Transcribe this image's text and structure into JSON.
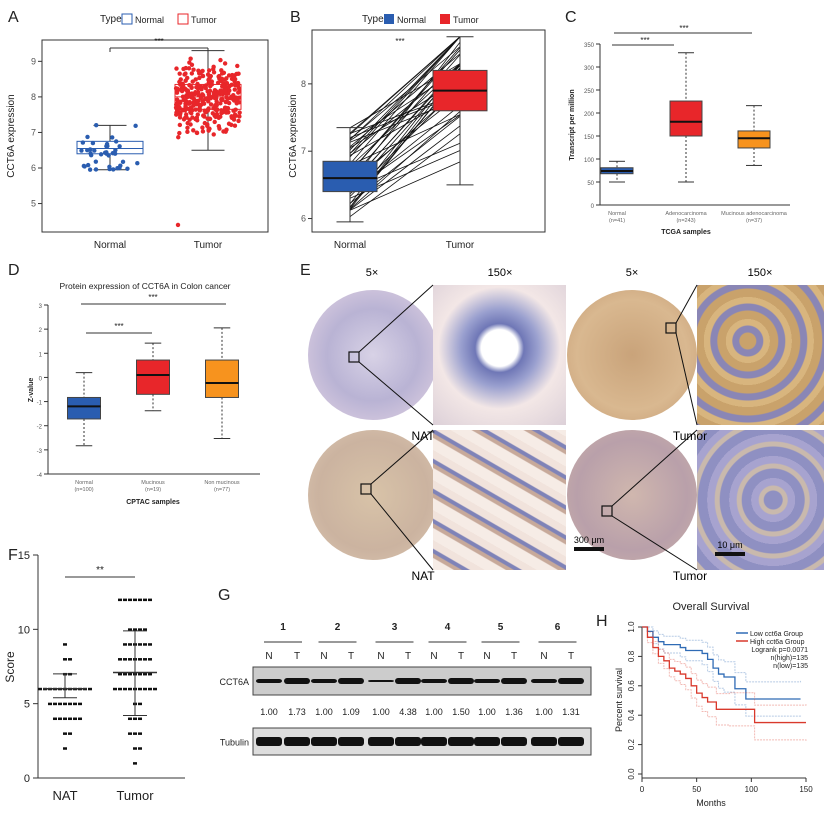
{
  "panel_letters": [
    "A",
    "B",
    "C",
    "D",
    "E",
    "F",
    "G",
    "H"
  ],
  "colors": {
    "normal_blue": "#2a5db0",
    "tumor_red": "#e8262a",
    "mucinous_orange": "#f7931e",
    "km_low": "#2f6bb5",
    "km_high": "#d9392c"
  },
  "chart_data": [
    {
      "panel": "A",
      "type": "box",
      "legend_title": "Type",
      "legend": [
        "Normal",
        "Tumor"
      ],
      "legend_placement": "top",
      "ylabel": "CCT6A expression",
      "categories": [
        "Normal",
        "Tumor"
      ],
      "ylim": [
        4.2,
        9.6
      ],
      "yticks": [
        5,
        6,
        7,
        8,
        9
      ],
      "significance": "***",
      "boxes": [
        {
          "name": "Normal",
          "q1": 6.4,
          "median": 6.55,
          "q3": 6.75,
          "min": 5.95,
          "max": 7.2
        },
        {
          "name": "Tumor",
          "q1": 7.65,
          "median": 8.0,
          "q3": 8.35,
          "min": 6.5,
          "max": 9.3
        }
      ]
    },
    {
      "panel": "B",
      "type": "box",
      "legend_title": "Type",
      "legend": [
        "Normal",
        "Tumor"
      ],
      "legend_placement": "top",
      "ylabel": "CCT6A expression",
      "categories": [
        "Normal",
        "Tumor"
      ],
      "ylim": [
        5.8,
        8.8
      ],
      "yticks": [
        6,
        7,
        8
      ],
      "significance": "***",
      "paired": true,
      "boxes": [
        {
          "name": "Normal",
          "q1": 6.4,
          "median": 6.6,
          "q3": 6.85,
          "min": 5.95,
          "max": 7.35
        },
        {
          "name": "Tumor",
          "q1": 7.6,
          "median": 7.9,
          "q3": 8.2,
          "min": 6.5,
          "max": 8.7
        }
      ]
    },
    {
      "panel": "C",
      "type": "box",
      "xlabel": "TCGA samples",
      "ylabel": "Transcript per million",
      "ylim": [
        0,
        350
      ],
      "yticks": [
        0,
        50,
        100,
        150,
        200,
        250,
        300,
        350
      ],
      "categories": [
        {
          "name": "Normal",
          "n": "(n=41)"
        },
        {
          "name": "Adenocarcinoma",
          "n": "(n=243)"
        },
        {
          "name": "Mucinous adenocarcinoma",
          "n": "(n=37)"
        }
      ],
      "significance": [
        "***",
        "***"
      ],
      "boxes": [
        {
          "q1": 68,
          "median": 74,
          "q3": 81,
          "min": 50,
          "max": 95
        },
        {
          "q1": 150,
          "median": 181,
          "q3": 226,
          "min": 50,
          "max": 331
        },
        {
          "q1": 124,
          "median": 145,
          "q3": 161,
          "min": 86,
          "max": 216
        }
      ]
    },
    {
      "panel": "D",
      "type": "box",
      "title": "Protein expression of CCT6A in Colon cancer",
      "xlabel": "CPTAC samples",
      "ylabel": "Z-value",
      "ylim": [
        -4,
        3
      ],
      "yticks": [
        -4,
        -3,
        -2,
        -1,
        0,
        1,
        2,
        3
      ],
      "categories": [
        {
          "name": "Normal",
          "n": "(n=100)"
        },
        {
          "name": "Mucinous",
          "n": "(n=19)"
        },
        {
          "name": "Non mucinous",
          "n": "(n=77)"
        }
      ],
      "significance": [
        "***",
        "***"
      ],
      "boxes": [
        {
          "q1": -1.72,
          "median": -1.2,
          "q3": -0.83,
          "min": -2.83,
          "max": 0.2
        },
        {
          "q1": -0.7,
          "median": 0.1,
          "q3": 0.72,
          "min": -1.38,
          "max": 1.42
        },
        {
          "q1": -0.83,
          "median": -0.23,
          "q3": 0.72,
          "min": -2.53,
          "max": 2.05
        }
      ]
    },
    {
      "panel": "F",
      "type": "scatter",
      "ylabel": "Score",
      "categories": [
        "NAT",
        "Tumor"
      ],
      "ylim": [
        0,
        15
      ],
      "yticks": [
        0,
        5,
        10,
        15
      ],
      "significance": "**",
      "summary": [
        {
          "name": "NAT",
          "mean": 6.0,
          "sd_low": 5.4,
          "sd_high": 7.0,
          "q_low": 4.0,
          "values_range": [
            2,
            9
          ]
        },
        {
          "name": "Tumor",
          "mean": 7.1,
          "sd_low": 4.2,
          "sd_high": 9.9,
          "values_range": [
            1,
            12
          ]
        }
      ]
    },
    {
      "panel": "H",
      "type": "line",
      "title": "Overall Survival",
      "xlabel": "Months",
      "ylabel": "Percent survival",
      "xlim": [
        0,
        150
      ],
      "ylim": [
        0,
        1
      ],
      "xticks": [
        0,
        50,
        100,
        150
      ],
      "yticks": [
        0,
        0.2,
        0.4,
        0.6,
        0.8,
        1.0
      ],
      "legend": [
        "Low cct6a Group",
        "High cct6a Group"
      ],
      "legend_placement": "top-right",
      "annotations": [
        "Logrank p=0.0071",
        "n(high)=135",
        "n(low)=135"
      ],
      "series": [
        {
          "name": "Low cct6a Group",
          "x": [
            0,
            5,
            10,
            15,
            20,
            35,
            40,
            55,
            60,
            65,
            70,
            75,
            85,
            95,
            145
          ],
          "y": [
            1.0,
            0.97,
            0.93,
            0.9,
            0.88,
            0.86,
            0.84,
            0.82,
            0.78,
            0.72,
            0.68,
            0.66,
            0.58,
            0.51,
            0.51
          ]
        },
        {
          "name": "High cct6a Group",
          "x": [
            0,
            5,
            10,
            15,
            20,
            25,
            30,
            35,
            40,
            45,
            50,
            55,
            60,
            68,
            80,
            103,
            150
          ],
          "y": [
            1.0,
            0.93,
            0.86,
            0.8,
            0.77,
            0.72,
            0.7,
            0.68,
            0.65,
            0.6,
            0.55,
            0.52,
            0.49,
            0.44,
            0.44,
            0.35,
            0.35
          ]
        }
      ]
    }
  ],
  "panel_e": {
    "magnifications": [
      "5×",
      "150×",
      "5×",
      "150×"
    ],
    "row_labels": [
      "NAT",
      "Tumor",
      "NAT",
      "Tumor"
    ],
    "scale_bars": [
      "300 μm",
      "10 μm"
    ]
  },
  "panel_g": {
    "groups": [
      "1",
      "2",
      "3",
      "4",
      "5",
      "6"
    ],
    "lanes": [
      "N",
      "T",
      "N",
      "T",
      "N",
      "T",
      "N",
      "T",
      "N",
      "T",
      "N",
      "T"
    ],
    "rows": [
      "CCT6A",
      "Tubulin"
    ],
    "ratios": [
      "1.00",
      "1.73",
      "1.00",
      "1.09",
      "1.00",
      "4.38",
      "1.00",
      "1.50",
      "1.00",
      "1.36",
      "1.00",
      "1.31"
    ]
  }
}
